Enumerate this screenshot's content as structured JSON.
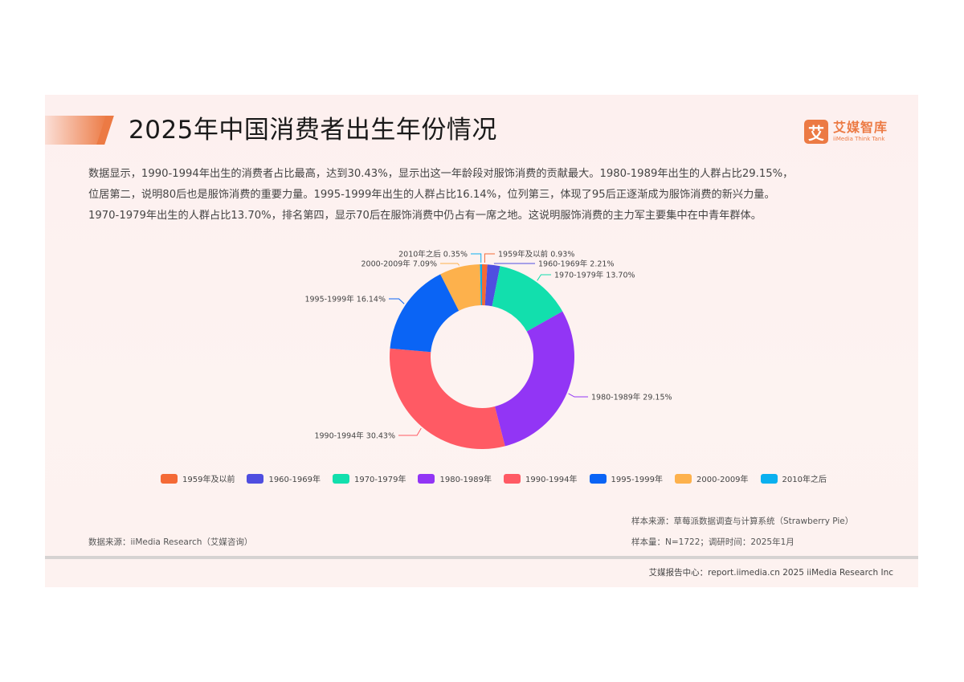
{
  "header": {
    "title": "2025年中国消费者出生年份情况",
    "logo": {
      "badge": "艾",
      "name_cn": "艾媒智库",
      "name_en": "iiMedia Think Tank"
    }
  },
  "description": [
    "数据显示，1990-1994年出生的消费者占比最高，达到30.43%，显示出这一年龄段对服饰消费的贡献最大。1980-1989年出生的人群占比29.15%，",
    "位居第二，说明80后也是服饰消费的重要力量。1995-1999年出生的人群占比16.14%，位列第三，体现了95后正逐渐成为服饰消费的新兴力量。",
    "1970-1979年出生的人群占比13.70%，排名第四，显示70后在服饰消费中仍占有一席之地。这说明服饰消费的主力军主要集中在中青年群体。"
  ],
  "chart_data": {
    "type": "pie",
    "variant": "donut",
    "title": "2025年中国消费者出生年份情况",
    "unit": "%",
    "categories": [
      "1959年及以前",
      "1960-1969年",
      "1970-1979年",
      "1980-1989年",
      "1990-1994年",
      "1995-1999年",
      "2000-2009年",
      "2010年之后"
    ],
    "values": [
      0.93,
      2.21,
      13.7,
      29.15,
      30.43,
      16.14,
      7.09,
      0.35
    ],
    "colors": [
      "#f46a36",
      "#4f4ee0",
      "#12dfad",
      "#9235f5",
      "#ff5a64",
      "#0a64f5",
      "#fdb14c",
      "#0ab0ef"
    ],
    "labels": [
      "1959年及以前 0.93%",
      "1960-1969年 2.21%",
      "1970-1979年 13.70%",
      "1980-1989年 29.15%",
      "1990-1994年 30.43%",
      "1995-1999年 16.14%",
      "2000-2009年 7.09%",
      "2010年之后 0.35%"
    ],
    "legend_position": "bottom",
    "start_angle": "12 o'clock, clockwise"
  },
  "legend": [
    {
      "label": "1959年及以前",
      "color": "#f46a36"
    },
    {
      "label": "1960-1969年",
      "color": "#4f4ee0"
    },
    {
      "label": "1970-1979年",
      "color": "#12dfad"
    },
    {
      "label": "1980-1989年",
      "color": "#9235f5"
    },
    {
      "label": "1990-1994年",
      "color": "#ff5a64"
    },
    {
      "label": "1995-1999年",
      "color": "#0a64f5"
    },
    {
      "label": "2000-2009年",
      "color": "#fdb14c"
    },
    {
      "label": "2010年之后",
      "color": "#0ab0ef"
    }
  ],
  "notes": {
    "sample_source": "样本来源：草莓派数据调查与计算系统（Strawberry Pie）",
    "sample_size": "样本量：N=1722；调研时间：2025年1月",
    "data_source": "数据来源：iiMedia Research（艾媒咨询）"
  },
  "footer": {
    "text": "艾媒报告中心：report.iimedia.cn 2025 iiMedia Research Inc"
  },
  "colors": {
    "accent": "#ec7a44",
    "card_bg": "#fdf1ef"
  }
}
